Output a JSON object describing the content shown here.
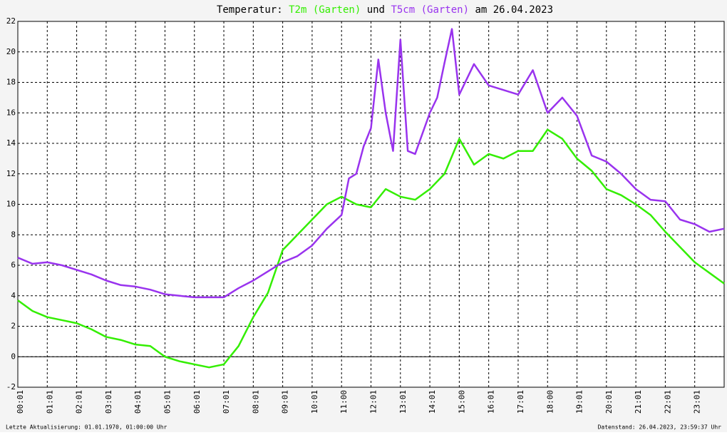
{
  "chart_data": {
    "type": "line",
    "title_prefix": "Temperatur:",
    "title_joiner": "und",
    "title_suffix": "am 26.04.2023",
    "footer_left": "Letzte Aktualisierung: 01.01.1970, 01:00:00 Uhr",
    "footer_right": "Datenstand: 26.04.2023, 23:59:37 Uhr",
    "xlim": [
      0,
      24
    ],
    "xticks": [
      {
        "value": 0,
        "label": "00:01"
      },
      {
        "value": 1,
        "label": "01:01"
      },
      {
        "value": 2,
        "label": "02:01"
      },
      {
        "value": 3,
        "label": "03:01"
      },
      {
        "value": 4,
        "label": "04:01"
      },
      {
        "value": 5,
        "label": "05:01"
      },
      {
        "value": 6,
        "label": "06:01"
      },
      {
        "value": 7,
        "label": "07:01"
      },
      {
        "value": 8,
        "label": "08:01"
      },
      {
        "value": 9,
        "label": "09:01"
      },
      {
        "value": 10,
        "label": "10:01"
      },
      {
        "value": 11,
        "label": "11:00"
      },
      {
        "value": 12,
        "label": "12:01"
      },
      {
        "value": 13,
        "label": "13:01"
      },
      {
        "value": 14,
        "label": "14:01"
      },
      {
        "value": 15,
        "label": "15:00"
      },
      {
        "value": 16,
        "label": "16:01"
      },
      {
        "value": 17,
        "label": "17:01"
      },
      {
        "value": 18,
        "label": "18:00"
      },
      {
        "value": 19,
        "label": "19:01"
      },
      {
        "value": 20,
        "label": "20:01"
      },
      {
        "value": 21,
        "label": "21:01"
      },
      {
        "value": 22,
        "label": "22:01"
      },
      {
        "value": 23,
        "label": "23:01"
      }
    ],
    "ylim": [
      -2,
      22
    ],
    "yticks": [
      -2,
      0,
      2,
      4,
      6,
      8,
      10,
      12,
      14,
      16,
      18,
      20,
      22
    ],
    "grid": true,
    "series": [
      {
        "name": "T2m (Garten)",
        "color": "#33ee00",
        "x": [
          0,
          0.5,
          1,
          1.5,
          2,
          2.5,
          3,
          3.5,
          4,
          4.5,
          5,
          5.5,
          6,
          6.5,
          7,
          7.5,
          8,
          8.5,
          9,
          9.5,
          10,
          10.5,
          11,
          11.5,
          12,
          12.5,
          13,
          13.5,
          14,
          14.5,
          15,
          15.5,
          16,
          16.5,
          17,
          17.5,
          18,
          18.5,
          19,
          19.5,
          20,
          20.5,
          21,
          21.5,
          22,
          22.5,
          23,
          23.5,
          24
        ],
        "values": [
          3.7,
          3.0,
          2.6,
          2.4,
          2.2,
          1.8,
          1.3,
          1.1,
          0.8,
          0.7,
          0.0,
          -0.3,
          -0.5,
          -0.7,
          -0.5,
          0.7,
          2.6,
          4.2,
          7.0,
          8.0,
          9.0,
          10.0,
          10.5,
          10.0,
          9.8,
          11.0,
          10.5,
          10.3,
          11.0,
          12.0,
          14.3,
          12.6,
          13.3,
          13.0,
          13.5,
          13.5,
          14.9,
          14.3,
          13.0,
          12.2,
          11.0,
          10.6,
          10.0,
          9.3,
          8.2,
          7.2,
          6.2,
          5.5,
          4.8
        ]
      },
      {
        "name": "T5cm (Garten)",
        "color": "#9933ee",
        "x": [
          0,
          0.5,
          1,
          1.5,
          2,
          2.5,
          3,
          3.5,
          4,
          4.5,
          5,
          5.5,
          6,
          6.5,
          7,
          7.5,
          8,
          8.5,
          9,
          9.5,
          10,
          10.5,
          11,
          11.25,
          11.5,
          11.75,
          12,
          12.25,
          12.5,
          12.75,
          13,
          13.25,
          13.5,
          14,
          14.25,
          14.5,
          14.75,
          15,
          15.5,
          16,
          16.5,
          17,
          17.5,
          18,
          18.5,
          19,
          19.5,
          20,
          20.5,
          21,
          21.5,
          22,
          22.5,
          23,
          23.5,
          24
        ],
        "values": [
          6.5,
          6.1,
          6.2,
          6.0,
          5.7,
          5.4,
          5.0,
          4.7,
          4.6,
          4.4,
          4.1,
          4.0,
          3.9,
          3.9,
          3.9,
          4.5,
          5.0,
          5.6,
          6.2,
          6.6,
          7.3,
          8.4,
          9.3,
          11.7,
          12.0,
          13.8,
          15.0,
          19.5,
          16.0,
          13.5,
          20.8,
          13.5,
          13.3,
          16.0,
          17.0,
          19.3,
          21.5,
          17.2,
          19.2,
          17.8,
          17.5,
          17.2,
          18.8,
          16.0,
          17.0,
          15.8,
          13.2,
          12.8,
          12.0,
          11.0,
          10.3,
          10.2,
          9.0,
          8.7,
          8.2,
          8.4
        ]
      }
    ]
  }
}
